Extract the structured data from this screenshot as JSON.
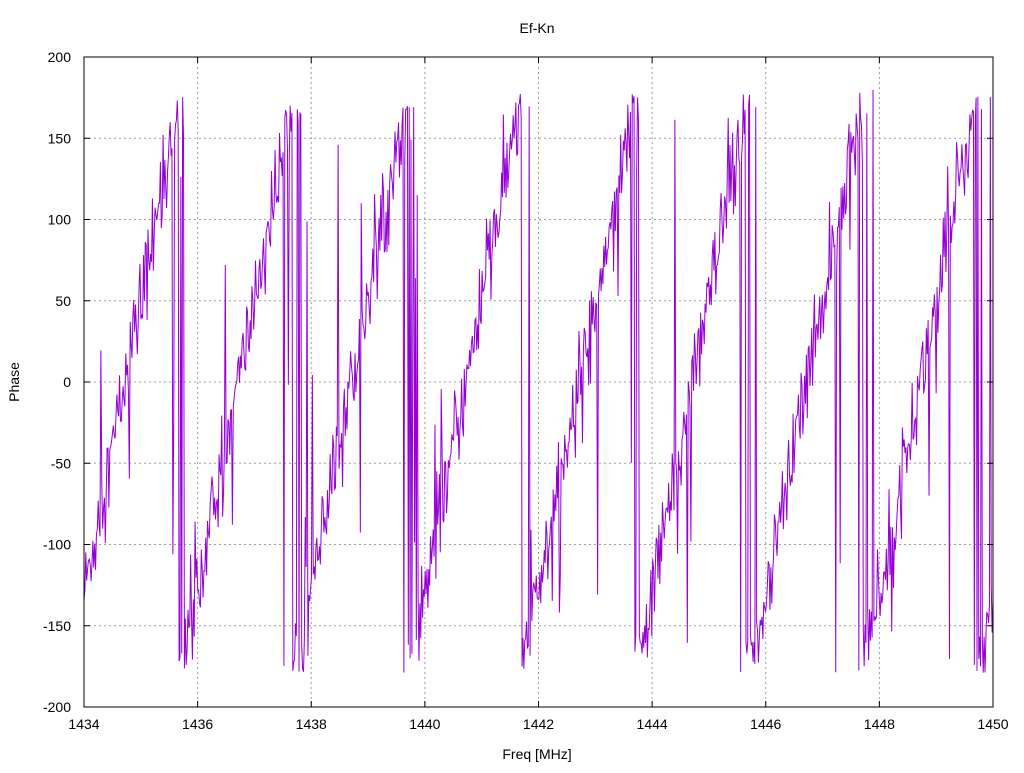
{
  "chart_data": {
    "type": "line",
    "title": "Ef-Kn",
    "xlabel": "Freq [MHz]",
    "ylabel": "Phase",
    "xlim": [
      1434,
      1450
    ],
    "ylim": [
      -200,
      200
    ],
    "xticks": [
      1434,
      1436,
      1438,
      1440,
      1442,
      1444,
      1446,
      1448,
      1450
    ],
    "yticks": [
      -200,
      -150,
      -100,
      -50,
      0,
      50,
      100,
      150,
      200
    ],
    "grid": true,
    "legend": "none",
    "series": [
      {
        "color": "#9400d3",
        "x_start": 1434.0,
        "x_end": 1450.0,
        "point_count": 1024,
        "phase_period_mhz": 2.0,
        "phase_at_x_start": -130,
        "phase_wrap": [
          -180,
          180
        ]
      }
    ]
  },
  "colors": {
    "series": "#9400d3",
    "grid": "#a0a0a0",
    "axes": "#000000",
    "background": "#ffffff"
  }
}
